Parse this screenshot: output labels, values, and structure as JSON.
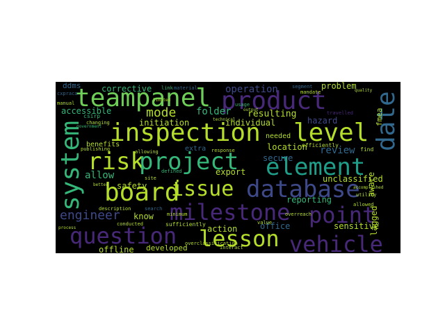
{
  "colors": {
    "background": "#000000",
    "page": "#ffffff",
    "purple": "#482878",
    "deep_purple": "#440154",
    "indigo": "#3e4989",
    "blue": "#31688e",
    "teal": "#26828e",
    "green_teal": "#1f9e89",
    "green": "#35b779",
    "light_green": "#6ece58",
    "yellow_green": "#b5de2b"
  },
  "words": {
    "teampanel": "teampanel",
    "product": "product",
    "date": "date",
    "inspection": "inspection",
    "level": "level",
    "system": "system",
    "risk": "risk",
    "project": "project",
    "element": "element",
    "board": "board",
    "issue": "issue",
    "database": "database",
    "milestone": "milestone",
    "point": "point",
    "question": "question",
    "lesson": "lesson",
    "vehicle": "vehicle",
    "engineer": "engineer",
    "mode": "mode",
    "operation": "operation",
    "corrective": "corrective",
    "problem": "problem",
    "accessible": "accessible",
    "folder": "folder",
    "resulting": "resulting",
    "initiation": "initiation",
    "individual": "individual",
    "hazard": "hazard",
    "review": "review",
    "allow": "allow",
    "extra": "extra",
    "benefits": "benefits",
    "location": "location",
    "needed": "needed",
    "secure": "secure",
    "export": "export",
    "unclassified": "unclassified",
    "safety": "safety",
    "reporting": "reporting",
    "know": "know",
    "action": "action",
    "office": "office",
    "sensitive": "sensitive",
    "offline": "offline",
    "developed": "developed",
    "lagged": "lagged",
    "aware": "aware",
    "fmea": "fmea",
    "ddms": "ddms",
    "cxpraca": "cxpraca",
    "csirp": "csirp",
    "manual": "manual",
    "changing": "changing",
    "material": "material",
    "usage": "usage",
    "allowing": "allowing",
    "response": "response",
    "defined": "defined",
    "site": "site",
    "overclassification": "overclassification",
    "minimum": "minimum",
    "sufficiently": "sufficiently",
    "interact": "interact",
    "utility": "utility",
    "find": "find",
    "publishing": "publishing",
    "government": "government",
    "search": "search",
    "conducted": "conducted",
    "value": "value",
    "segment": "segment",
    "mandate": "mandate",
    "travelled": "travelled",
    "efficiently": "efficiently",
    "better": "better",
    "description": "description",
    "allowed": "allowed",
    "technical": "technical",
    "limited": "limited",
    "output": "output",
    "link": "link",
    "quality": "quality",
    "overreach": "overreach",
    "process": "process",
    "accomplished": "accomplished"
  }
}
